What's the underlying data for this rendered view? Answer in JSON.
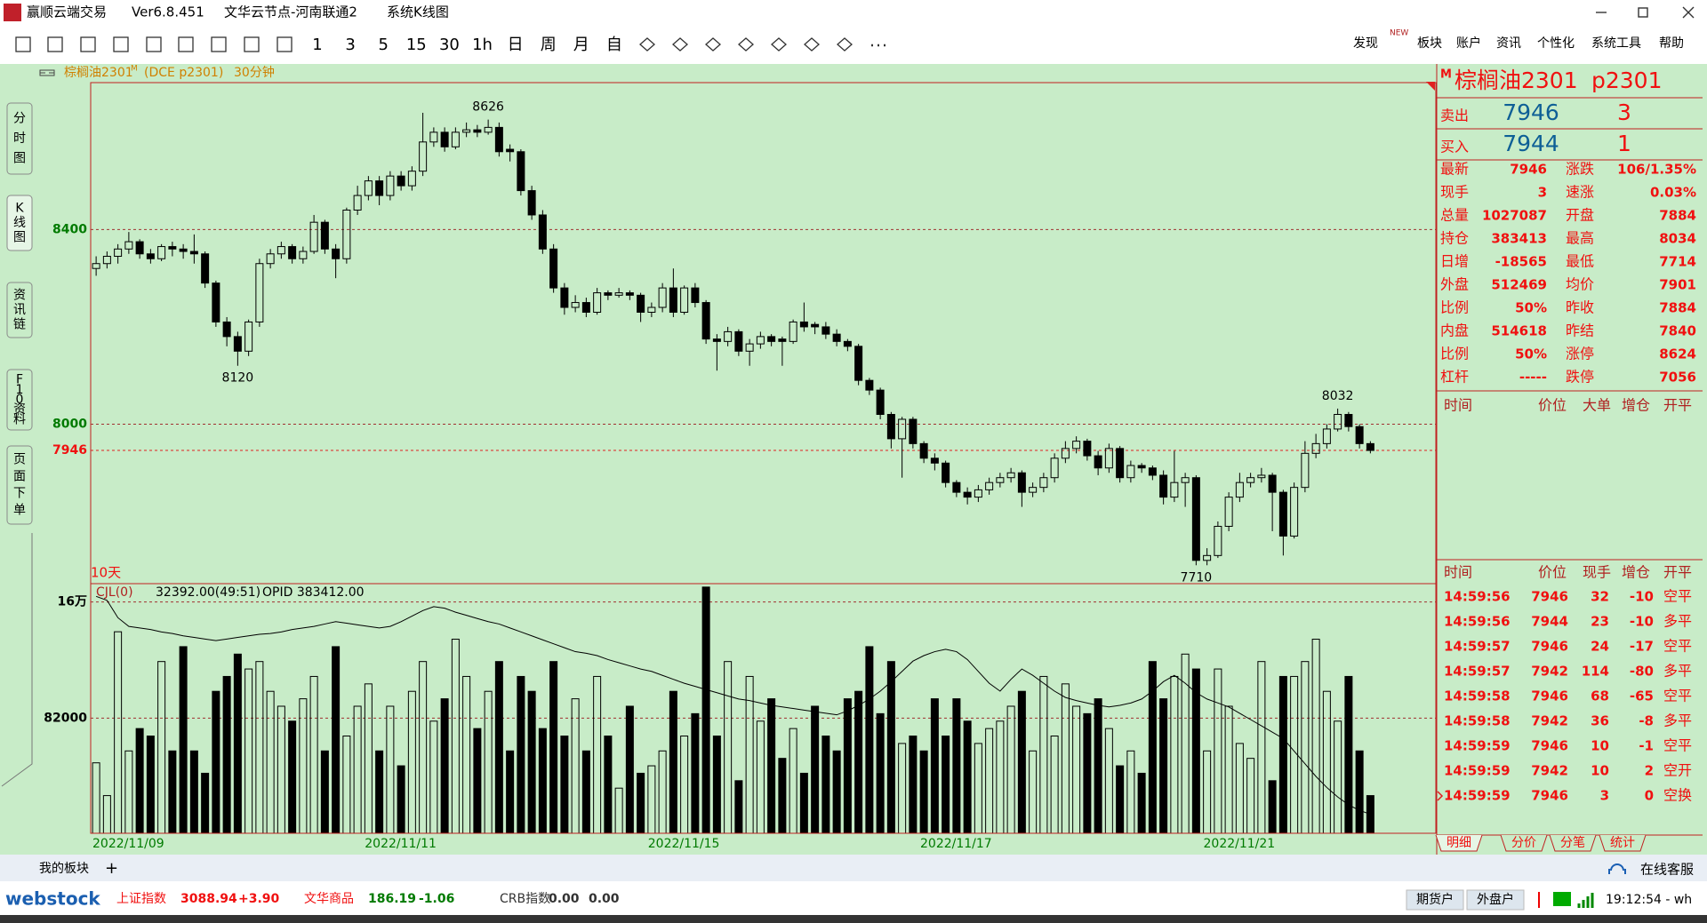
{
  "window": {
    "app": "赢顺云端交易",
    "version": "Ver6.8.451",
    "node": "文华云节点-河南联通2",
    "view": "系统K线图"
  },
  "toolbar": {
    "periods": [
      "1",
      "3",
      "5",
      "15",
      "30",
      "1h",
      "日",
      "周",
      "月",
      "自"
    ]
  },
  "menu": {
    "items": [
      "发现",
      "板块",
      "账户",
      "资讯",
      "个性化",
      "系统工具",
      "帮助"
    ],
    "badge": "NEW"
  },
  "side_tabs": [
    "分时图",
    "K线图",
    "资讯链",
    "F10资料",
    "页面下单"
  ],
  "chart_data": {
    "type": "candlestick",
    "header": {
      "name": "棕榈油2301",
      "flag": "M",
      "code": "(DCE p2301)",
      "period": "30分钟"
    },
    "range_label": "10天",
    "ylim": [
      7674,
      8702
    ],
    "yticks": [
      8000,
      8400
    ],
    "last_price": 7946,
    "candles": [
      [
        8320,
        8345,
        8305,
        8330
      ],
      [
        8330,
        8355,
        8320,
        8345
      ],
      [
        8345,
        8370,
        8330,
        8360
      ],
      [
        8360,
        8395,
        8350,
        8375
      ],
      [
        8375,
        8380,
        8340,
        8350
      ],
      [
        8350,
        8360,
        8330,
        8340
      ],
      [
        8340,
        8370,
        8335,
        8365
      ],
      [
        8365,
        8375,
        8345,
        8360
      ],
      [
        8360,
        8370,
        8340,
        8355
      ],
      [
        8355,
        8390,
        8330,
        8350
      ],
      [
        8350,
        8355,
        8280,
        8290
      ],
      [
        8290,
        8295,
        8200,
        8210
      ],
      [
        8210,
        8220,
        8160,
        8180
      ],
      [
        8180,
        8190,
        8120,
        8150
      ],
      [
        8150,
        8215,
        8140,
        8210
      ],
      [
        8210,
        8340,
        8200,
        8330
      ],
      [
        8330,
        8360,
        8320,
        8350
      ],
      [
        8350,
        8375,
        8340,
        8365
      ],
      [
        8365,
        8370,
        8330,
        8340
      ],
      [
        8340,
        8365,
        8330,
        8355
      ],
      [
        8355,
        8430,
        8350,
        8415
      ],
      [
        8415,
        8420,
        8350,
        8360
      ],
      [
        8360,
        8370,
        8300,
        8340
      ],
      [
        8340,
        8445,
        8330,
        8440
      ],
      [
        8440,
        8490,
        8430,
        8470
      ],
      [
        8470,
        8510,
        8460,
        8500
      ],
      [
        8500,
        8510,
        8450,
        8470
      ],
      [
        8470,
        8520,
        8460,
        8510
      ],
      [
        8510,
        8520,
        8480,
        8490
      ],
      [
        8490,
        8530,
        8480,
        8520
      ],
      [
        8520,
        8640,
        8510,
        8580
      ],
      [
        8580,
        8610,
        8570,
        8600
      ],
      [
        8600,
        8610,
        8560,
        8570
      ],
      [
        8570,
        8610,
        8565,
        8600
      ],
      [
        8600,
        8620,
        8590,
        8605
      ],
      [
        8605,
        8615,
        8590,
        8600
      ],
      [
        8600,
        8626,
        8595,
        8610
      ],
      [
        8610,
        8620,
        8550,
        8560
      ],
      [
        8565,
        8575,
        8540,
        8560
      ],
      [
        8560,
        8565,
        8470,
        8480
      ],
      [
        8480,
        8490,
        8420,
        8430
      ],
      [
        8430,
        8440,
        8350,
        8360
      ],
      [
        8360,
        8370,
        8270,
        8280
      ],
      [
        8280,
        8290,
        8225,
        8240
      ],
      [
        8240,
        8265,
        8230,
        8250
      ],
      [
        8250,
        8260,
        8220,
        8230
      ],
      [
        8230,
        8280,
        8225,
        8270
      ],
      [
        8270,
        8275,
        8255,
        8265
      ],
      [
        8265,
        8280,
        8260,
        8270
      ],
      [
        8270,
        8275,
        8255,
        8265
      ],
      [
        8265,
        8270,
        8210,
        8230
      ],
      [
        8230,
        8250,
        8220,
        8240
      ],
      [
        8240,
        8290,
        8230,
        8280
      ],
      [
        8280,
        8320,
        8220,
        8230
      ],
      [
        8230,
        8285,
        8225,
        8280
      ],
      [
        8280,
        8290,
        8240,
        8250
      ],
      [
        8250,
        8255,
        8165,
        8175
      ],
      [
        8175,
        8185,
        8110,
        8170
      ],
      [
        8170,
        8200,
        8160,
        8190
      ],
      [
        8190,
        8195,
        8140,
        8150
      ],
      [
        8150,
        8175,
        8120,
        8165
      ],
      [
        8165,
        8190,
        8155,
        8180
      ],
      [
        8180,
        8185,
        8160,
        8170
      ],
      [
        8175,
        8180,
        8120,
        8170
      ],
      [
        8170,
        8215,
        8165,
        8210
      ],
      [
        8210,
        8250,
        8190,
        8200
      ],
      [
        8205,
        8210,
        8185,
        8200
      ],
      [
        8200,
        8210,
        8175,
        8185
      ],
      [
        8185,
        8195,
        8160,
        8170
      ],
      [
        8170,
        8175,
        8150,
        8160
      ],
      [
        8160,
        8165,
        8080,
        8090
      ],
      [
        8090,
        8095,
        8060,
        8070
      ],
      [
        8070,
        8075,
        8010,
        8020
      ],
      [
        8020,
        8025,
        7950,
        7970
      ],
      [
        7970,
        8015,
        7890,
        8010
      ],
      [
        8010,
        8015,
        7950,
        7960
      ],
      [
        7960,
        7965,
        7920,
        7930
      ],
      [
        7930,
        7940,
        7905,
        7920
      ],
      [
        7920,
        7925,
        7870,
        7880
      ],
      [
        7880,
        7885,
        7850,
        7860
      ],
      [
        7860,
        7870,
        7835,
        7850
      ],
      [
        7850,
        7875,
        7840,
        7865
      ],
      [
        7865,
        7890,
        7855,
        7880
      ],
      [
        7880,
        7900,
        7870,
        7890
      ],
      [
        7890,
        7910,
        7880,
        7900
      ],
      [
        7900,
        7905,
        7830,
        7860
      ],
      [
        7860,
        7880,
        7850,
        7870
      ],
      [
        7870,
        7900,
        7860,
        7890
      ],
      [
        7890,
        7940,
        7880,
        7930
      ],
      [
        7930,
        7965,
        7920,
        7950
      ],
      [
        7950,
        7975,
        7940,
        7965
      ],
      [
        7965,
        7970,
        7925,
        7935
      ],
      [
        7935,
        7945,
        7895,
        7910
      ],
      [
        7910,
        7960,
        7900,
        7950
      ],
      [
        7950,
        7955,
        7880,
        7890
      ],
      [
        7890,
        7925,
        7880,
        7915
      ],
      [
        7915,
        7920,
        7900,
        7910
      ],
      [
        7910,
        7915,
        7885,
        7895
      ],
      [
        7895,
        7905,
        7835,
        7850
      ],
      [
        7850,
        7945,
        7840,
        7880
      ],
      [
        7880,
        7900,
        7830,
        7890
      ],
      [
        7890,
        7895,
        7710,
        7720
      ],
      [
        7720,
        7745,
        7710,
        7730
      ],
      [
        7730,
        7800,
        7725,
        7790
      ],
      [
        7790,
        7860,
        7780,
        7850
      ],
      [
        7850,
        7900,
        7840,
        7880
      ],
      [
        7880,
        7900,
        7870,
        7890
      ],
      [
        7890,
        7910,
        7880,
        7895
      ],
      [
        7895,
        7900,
        7780,
        7860
      ],
      [
        7860,
        7865,
        7730,
        7770
      ],
      [
        7770,
        7880,
        7765,
        7870
      ],
      [
        7870,
        7965,
        7860,
        7940
      ],
      [
        7940,
        7980,
        7930,
        7960
      ],
      [
        7960,
        8000,
        7950,
        7990
      ],
      [
        7990,
        8032,
        7985,
        8020
      ],
      [
        8020,
        8025,
        7985,
        7995
      ],
      [
        7995,
        8000,
        7950,
        7960
      ],
      [
        7960,
        7965,
        7940,
        7946
      ]
    ],
    "annotations": [
      {
        "index": 36,
        "value": 8626
      },
      {
        "index": 13,
        "value": 8120
      },
      {
        "index": 101,
        "value": 7710
      },
      {
        "index": 114,
        "value": 8032
      }
    ],
    "date_ticks": [
      {
        "index": 0,
        "label": "2022/11/09"
      },
      {
        "index": 25,
        "label": "2022/11/11"
      },
      {
        "index": 51,
        "label": "2022/11/15"
      },
      {
        "index": 76,
        "label": "2022/11/17"
      },
      {
        "index": 102,
        "label": "2022/11/21"
      }
    ],
    "indicator": {
      "name": "CJL(0)",
      "value": "32392.00(49:51)",
      "oi": "OPID 383412.00"
    },
    "vol_ylim": [
      4700,
      171700
    ],
    "vol_yticks": [
      82000,
      {
        "value": 160000,
        "label": "16万"
      }
    ],
    "volume": [
      52000,
      30000,
      140000,
      60000,
      75000,
      70000,
      120000,
      60000,
      130000,
      60000,
      45000,
      100000,
      110000,
      125000,
      115000,
      120000,
      100000,
      90000,
      80000,
      95000,
      110000,
      60000,
      130000,
      70000,
      90000,
      105000,
      60000,
      90000,
      50000,
      100000,
      120000,
      80000,
      95000,
      135000,
      110000,
      75000,
      100000,
      120000,
      60000,
      110000,
      100000,
      75000,
      120000,
      70000,
      95000,
      60000,
      110000,
      70000,
      35000,
      90000,
      45000,
      50000,
      60000,
      100000,
      70000,
      85000,
      170000,
      70000,
      120000,
      40000,
      110000,
      80000,
      95000,
      55000,
      75000,
      45000,
      90000,
      70000,
      60000,
      95000,
      100000,
      130000,
      85000,
      120000,
      65000,
      70000,
      60000,
      95000,
      70000,
      95000,
      80000,
      65000,
      75000,
      80000,
      90000,
      100000,
      60000,
      110000,
      70000,
      105000,
      90000,
      85000,
      95000,
      75000,
      50000,
      60000,
      45000,
      120000,
      95000,
      110000,
      125000,
      115000,
      60000,
      115000,
      90000,
      65000,
      55000,
      120000,
      40000,
      110000,
      110000,
      120000,
      135000,
      100000,
      80000,
      110000,
      60000,
      30000
    ],
    "oi_lim": [
      381000,
      412500
    ],
    "open_interest": [
      411000,
      410500,
      408300,
      407200,
      407000,
      406800,
      406500,
      406300,
      406000,
      405800,
      405600,
      405400,
      405600,
      405800,
      406000,
      406200,
      406300,
      406500,
      406800,
      407000,
      407200,
      407500,
      407800,
      407600,
      407400,
      407200,
      407000,
      407200,
      407800,
      408500,
      409200,
      409700,
      409500,
      409000,
      408600,
      408200,
      407800,
      407500,
      407000,
      406500,
      406000,
      405500,
      405000,
      404500,
      404000,
      403800,
      403500,
      403000,
      402600,
      402200,
      401800,
      401500,
      401000,
      400500,
      400000,
      399600,
      399200,
      398800,
      398400,
      398000,
      397800,
      397500,
      397200,
      397000,
      396800,
      396600,
      396400,
      396200,
      396000,
      396500,
      397200,
      398000,
      399000,
      400200,
      401500,
      402800,
      403500,
      404000,
      404300,
      404000,
      403000,
      401500,
      400000,
      399000,
      400500,
      401800,
      401000,
      400000,
      399000,
      398200,
      397800,
      397500,
      397200,
      397000,
      397200,
      397500,
      398000,
      399000,
      400200,
      401000,
      400000,
      398800,
      398000,
      397500,
      397000,
      396200,
      395400,
      394600,
      393800,
      393000,
      391400,
      389800,
      388200,
      386800,
      385600,
      384600,
      383900,
      383412
    ]
  },
  "quote": {
    "flag": "M",
    "name": "棕榈油2301",
    "code": "p2301",
    "sell": {
      "label": "卖出",
      "price": 7946,
      "vol": 3
    },
    "buy": {
      "label": "买入",
      "price": 7944,
      "vol": 1
    },
    "stats": [
      [
        "最新",
        7946,
        "涨跌",
        "106/1.35%"
      ],
      [
        "现手",
        3,
        "速涨",
        "0.03%"
      ],
      [
        "总量",
        1027087,
        "开盘",
        7884
      ],
      [
        "持仓",
        383413,
        "最高",
        8034
      ],
      [
        "日增",
        -18565,
        "最低",
        7714
      ],
      [
        "外盘",
        512469,
        "均价",
        7901
      ],
      [
        "比例",
        "50%",
        "昨收",
        7884
      ],
      [
        "内盘",
        514618,
        "昨结",
        7840
      ],
      [
        "比例",
        "50%",
        "涨停",
        8624
      ],
      [
        "杠杆",
        "-----",
        "跌停",
        7056
      ]
    ]
  },
  "big_orders_header": [
    "时间",
    "价位",
    "大单",
    "增仓",
    "开平"
  ],
  "trades_header": [
    "时间",
    "价位",
    "现手",
    "增仓",
    "开平"
  ],
  "trades": [
    [
      "14:59:56",
      7946,
      32,
      -10,
      "空平"
    ],
    [
      "14:59:56",
      7944,
      23,
      -10,
      "多平"
    ],
    [
      "14:59:57",
      7946,
      24,
      -17,
      "空平"
    ],
    [
      "14:59:57",
      7942,
      114,
      -80,
      "多平"
    ],
    [
      "14:59:58",
      7946,
      68,
      -65,
      "空平"
    ],
    [
      "14:59:58",
      7942,
      36,
      -8,
      "多平"
    ],
    [
      "14:59:59",
      7946,
      10,
      -1,
      "空平"
    ],
    [
      "14:59:59",
      7942,
      10,
      2,
      "空开"
    ],
    [
      "14:59:59",
      7946,
      3,
      0,
      "空换"
    ]
  ],
  "panel_tabs": [
    "明细",
    "分价",
    "分笔",
    "统计"
  ],
  "status": {
    "my_board": "我的板块",
    "add": "+",
    "service": "在线客服",
    "logo": "webstock",
    "indices": [
      [
        "上证指数",
        3088.94,
        "+3.90"
      ],
      [
        "文华商品",
        186.19,
        "-1.06"
      ],
      [
        "CRB指数",
        "0.00",
        "0.00"
      ]
    ],
    "accounts": [
      "期货户",
      "外盘户"
    ],
    "clock": "19:12:54 - wh"
  }
}
